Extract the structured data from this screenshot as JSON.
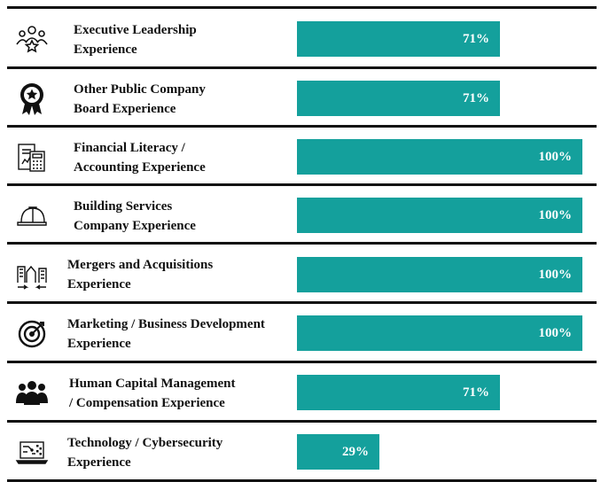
{
  "colors": {
    "bar": "#14A09C",
    "rule": "#111111",
    "text": "#111111"
  },
  "chart_data": {
    "type": "bar",
    "orientation": "horizontal",
    "title": "",
    "xlabel": "",
    "ylabel": "",
    "xlim": [
      0,
      100
    ],
    "unit": "%",
    "grid": false,
    "categories": [
      "Executive Leadership\nExperience",
      "Other Public Company\nBoard Experience",
      "Financial Literacy /\nAccounting Experience",
      "Building Services\nCompany Experience",
      "Mergers and Acquisitions\nExperience",
      "Marketing / Business Development\nExperience",
      "Human Capital Management\n/ Compensation Experience",
      "Technology / Cybersecurity\nExperience"
    ],
    "values": [
      71,
      71,
      100,
      100,
      100,
      100,
      71,
      29
    ],
    "value_labels": [
      "71%",
      "71%",
      "100%",
      "100%",
      "100%",
      "100%",
      "71%",
      "29%"
    ],
    "icons": [
      "people-star-icon",
      "award-ribbon-icon",
      "calculator-document-icon",
      "hard-hat-icon",
      "buildings-merge-icon",
      "target-icon",
      "group-people-icon",
      "laptop-circuit-icon"
    ]
  }
}
